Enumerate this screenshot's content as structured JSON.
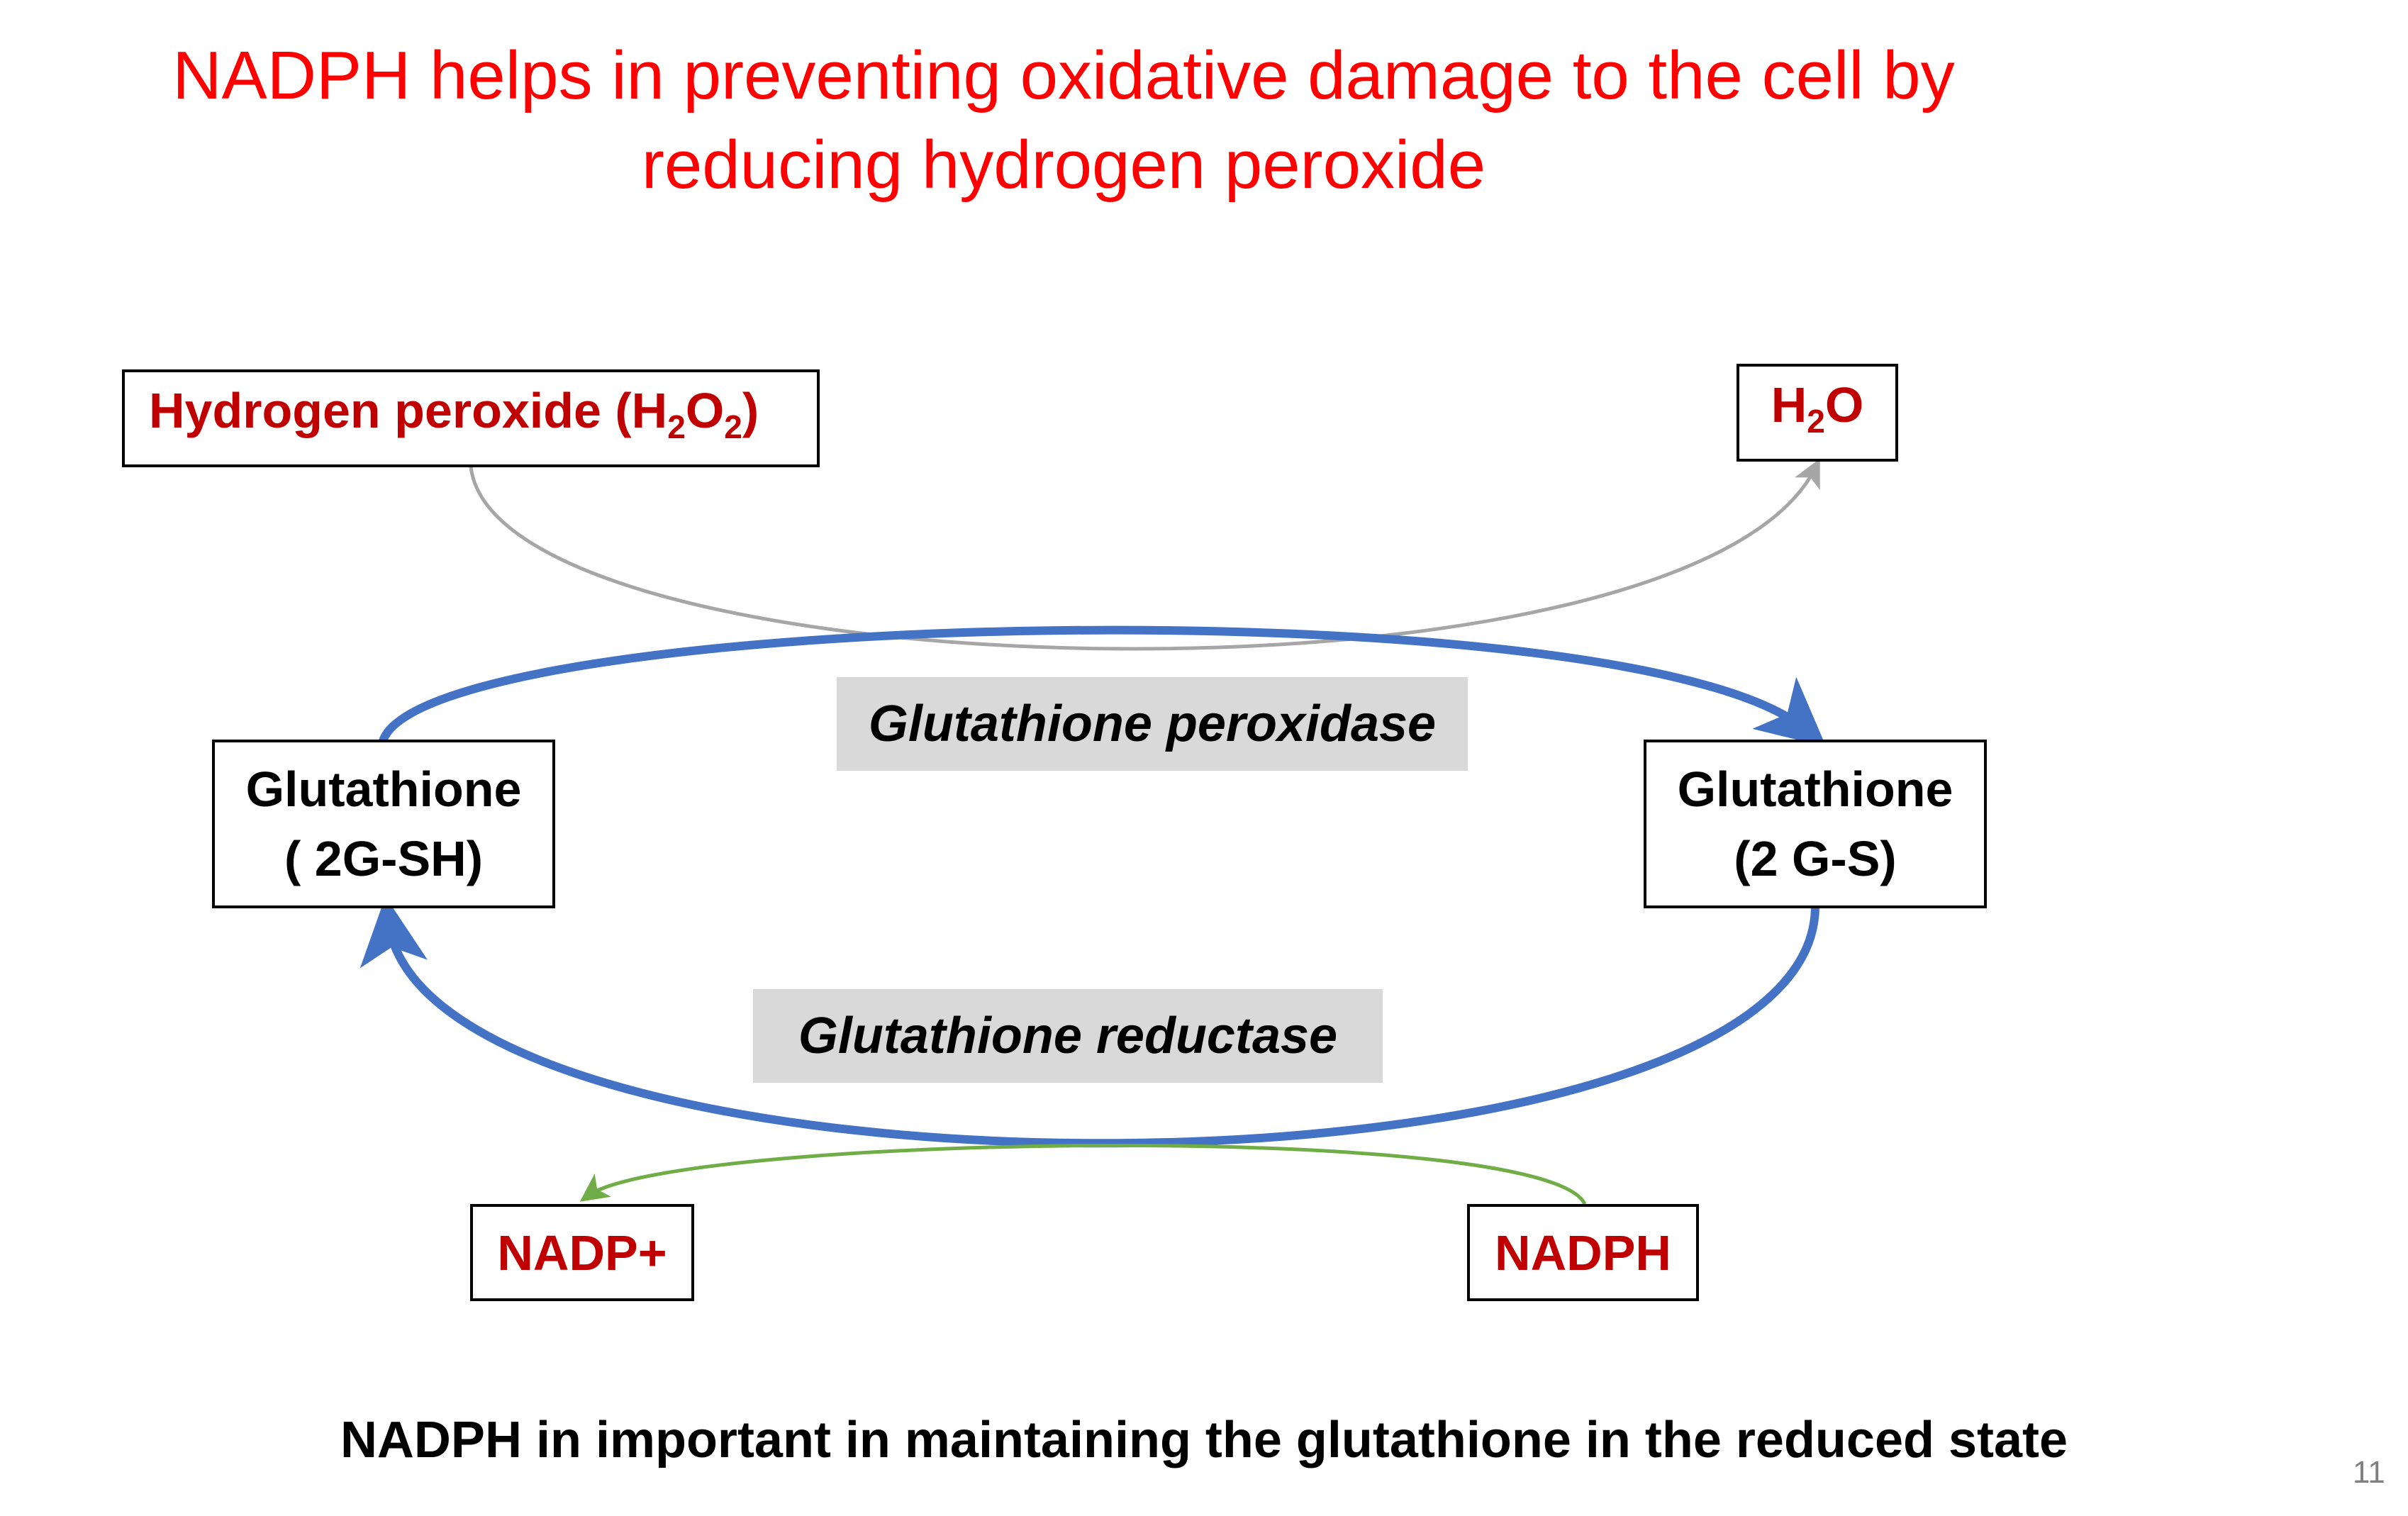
{
  "title": {
    "line1": "NADPH helps in preventing oxidative damage to the cell by",
    "line2": "reducing hydrogen peroxide"
  },
  "nodes": {
    "h2o2": {
      "text": "Hydrogen peroxide (H",
      "sub1": "2",
      "mid": "O",
      "sub2": "2",
      "end": ")"
    },
    "h2o": {
      "pre": "H",
      "sub": "2",
      "post": "O"
    },
    "gsh": {
      "line1": "Glutathione",
      "line2": "( 2G-SH)"
    },
    "gssg": {
      "line1": "Glutathione",
      "line2": "(2 G-S)"
    },
    "nadp": {
      "text": "NADP+"
    },
    "nadph": {
      "text": "NADPH"
    }
  },
  "enzymes": {
    "peroxidase": "Glutathione peroxidase",
    "reductase": "Glutathione reductase"
  },
  "caption": "NADPH in important in maintaining the glutathione in the reduced state",
  "page_number": "11",
  "colors": {
    "title": "#ff0000",
    "node_red_text": "#c00000",
    "blue_arrow": "#4472c4",
    "gray_arrow": "#a6a6a6",
    "green_arrow": "#70ad47",
    "enzyme_bg": "#d9d9d9"
  }
}
